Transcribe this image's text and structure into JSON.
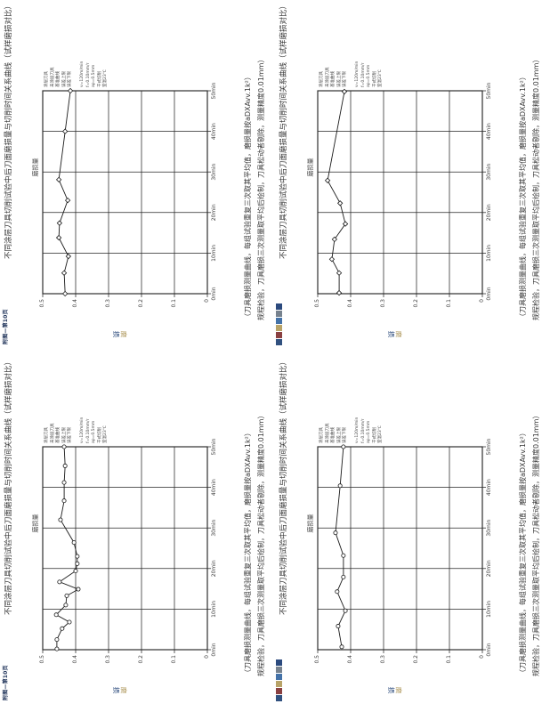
{
  "page": {
    "background": "#ffffff",
    "type": "scanned-figure-page",
    "orientation": "landscape-figures-rotated-on-portrait-page"
  },
  "colors": {
    "grid": "#262626",
    "series": "#1a1a1a",
    "corner_code": "#1c3057",
    "ytitle_top": "#b09a5f",
    "ytitle_bottom": "#27477a"
  },
  "chart_data": [
    {
      "type": "line",
      "position": "top-left",
      "title": "不同涂层刀具切削试验中后刀面磨损量与切削时间关系曲线（试样磨损对比）",
      "mini_title": "磨损量",
      "ylabel": "磨损",
      "xlabel": "",
      "xlim": [
        0,
        50
      ],
      "ylim": [
        0,
        0.5
      ],
      "x_tick_labels": [
        "0min",
        "10min",
        "20min",
        "30min",
        "40min",
        "50min"
      ],
      "y_tick_labels": [
        "0.5",
        "0.4",
        "0.3",
        "0.2",
        "0.1",
        "0"
      ],
      "grid": true,
      "marker": "diamond",
      "legend_position": "right",
      "legend_lines": [
        [
          "涂层刀具",
          "未涂层刀具",
          "基准曲线",
          "误差上限",
          "误差下限"
        ],
        [
          "v=120m/min",
          "f=0.10mm/r",
          "ap=0.5mm",
          "干式切削",
          "室温23℃"
        ]
      ],
      "caption_line1": "（刀具磨损测量曲线，每组试验重复三次取其平均值，磨损量按aDXAvv.1k²）",
      "caption_line2": "规程检验，刀具磨损三次测量取平均后绘制，刀具松动者剔除，测量精度0.01mm）",
      "corner_type": "code",
      "corner_code": "附图—第10页",
      "x": [
        0,
        5.1,
        9.2,
        13.8,
        17.4,
        23.0,
        28.1,
        40.0,
        50.0
      ],
      "y": [
        0.432,
        0.435,
        0.422,
        0.451,
        0.449,
        0.424,
        0.451,
        0.432,
        0.416
      ]
    },
    {
      "type": "line",
      "position": "top-right",
      "title": "不同涂层刀具切削试验中后刀面磨损量与切削时间关系曲线（试样磨损对比）",
      "mini_title": "磨损量",
      "ylabel": "磨损",
      "xlabel": "",
      "xlim": [
        0,
        50
      ],
      "ylim": [
        0,
        0.5
      ],
      "x_tick_labels": [
        "0min",
        "10min",
        "20min",
        "30min",
        "40min",
        "50min"
      ],
      "y_tick_labels": [
        "0.5",
        "0.4",
        "0.3",
        "0.2",
        "0.1",
        "0"
      ],
      "grid": true,
      "marker": "diamond",
      "legend_position": "right",
      "legend_lines": [
        [
          "涂层刀具",
          "未涂层刀具",
          "基准曲线",
          "误差上限",
          "误差下限"
        ],
        [
          "v=120m/min",
          "f=0.10mm/r",
          "ap=0.5mm",
          "干式切削",
          "室温23℃"
        ]
      ],
      "caption_line1": "（刀具磨损测量曲线，每组试验重复三次取其平均值，磨损量按aDXAvv.1k²）",
      "caption_line2": "规程检验，刀具磨损三次测量取平均后绘制，刀具松动者剔除，测量精度0.01mm）",
      "corner_type": "strip",
      "logo_colors": [
        "#31517f",
        "#8a4040",
        "#b8a368",
        "#4472a8",
        "#77828e",
        "#2b4a7e"
      ],
      "x": [
        0.2,
        5.1,
        8.5,
        13.4,
        17.2,
        22.3,
        27.9,
        49.8
      ],
      "y": [
        0.435,
        0.435,
        0.457,
        0.449,
        0.416,
        0.432,
        0.47,
        0.419
      ]
    },
    {
      "type": "line",
      "position": "bottom-left",
      "title": "不同涂层刀具切削试验中后刀面磨损量与切削时间关系曲线（试样磨损对比）",
      "mini_title": "磨损量",
      "ylabel": "磨损",
      "xlabel": "",
      "xlim": [
        0,
        50
      ],
      "ylim": [
        0,
        0.5
      ],
      "x_tick_labels": [
        "0min",
        "10min",
        "20min",
        "30min",
        "40min",
        "50min"
      ],
      "y_tick_labels": [
        "0.5",
        "0.4",
        "0.3",
        "0.2",
        "0.1",
        "0"
      ],
      "grid": true,
      "marker": "circle",
      "legend_position": "right",
      "legend_lines": [
        [
          "涂层刀具",
          "未涂层刀具",
          "基准曲线",
          "误差上限",
          "误差下限"
        ],
        [
          "v=120m/min",
          "f=0.10mm/r",
          "ap=0.5mm",
          "干式切削",
          "室温23℃"
        ]
      ],
      "caption_line1": "（刀具磨损测量曲线，每组试验重复三次取其平均值，磨损量按aDXAvv.1k²）",
      "caption_line2": "规程检验，刀具磨损三次测量取平均后绘制，刀具松动者剔除，测量精度0.01mm）",
      "corner_type": "code",
      "corner_code": "附图—第10页",
      "x": [
        0.2,
        2.5,
        5.2,
        6.8,
        8.6,
        11.0,
        13.3,
        14.9,
        16.7,
        19.4,
        21.2,
        23.0,
        26.4,
        32.0,
        36.7,
        41.2,
        45.3,
        50.0
      ],
      "y": [
        0.457,
        0.457,
        0.441,
        0.419,
        0.459,
        0.43,
        0.427,
        0.392,
        0.449,
        0.4,
        0.395,
        0.395,
        0.405,
        0.446,
        0.435,
        0.435,
        0.432,
        0.435
      ]
    },
    {
      "type": "line",
      "position": "bottom-right",
      "title": "不同涂层刀具切削试验中后刀面磨损量与切削时间关系曲线（试样磨损对比）",
      "mini_title": "磨损量",
      "ylabel": "磨损",
      "xlabel": "",
      "xlim": [
        0,
        50
      ],
      "ylim": [
        0,
        0.5
      ],
      "x_tick_labels": [
        "0min",
        "10min",
        "20min",
        "30min",
        "40min",
        "50min"
      ],
      "y_tick_labels": [
        "0.5",
        "0.4",
        "0.3",
        "0.2",
        "0.1",
        "0"
      ],
      "grid": true,
      "marker": "circle",
      "legend_position": "right",
      "legend_lines": [
        [
          "涂层刀具",
          "未涂层刀具",
          "基准曲线",
          "误差上限",
          "误差下限"
        ],
        [
          "v=120m/min",
          "f=0.10mm/r",
          "ap=0.5mm",
          "干式切削",
          "室温23℃"
        ]
      ],
      "caption_line1": "（刀具磨损测量曲线，每组试验重复三次取其平均值，磨损量按aDXAvv.1k²）",
      "caption_line2": "规程检验，刀具磨损三次测量取平均后绘制，刀具松动者剔除，测量精度0.01mm）",
      "corner_type": "strip",
      "logo_colors": [
        "#31517f",
        "#8a4040",
        "#b8a368",
        "#4472a8",
        "#77828e",
        "#2b4a7e"
      ],
      "x": [
        0.7,
        5.8,
        9.6,
        14.3,
        17.9,
        23.2,
        28.8,
        40.4,
        50.0
      ],
      "y": [
        0.427,
        0.438,
        0.416,
        0.441,
        0.422,
        0.422,
        0.446,
        0.432,
        0.422
      ]
    }
  ]
}
